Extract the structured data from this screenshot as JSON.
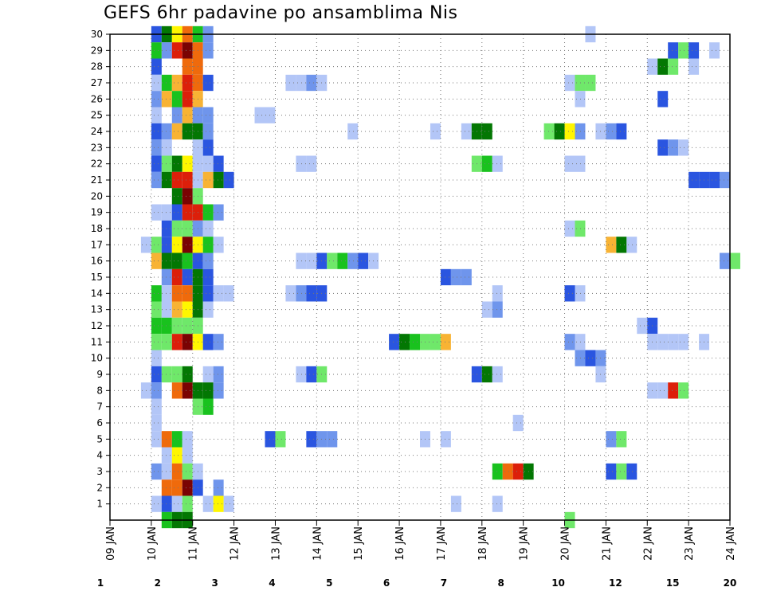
{
  "chart_data": {
    "type": "heatmap",
    "title": "GEFS 6hr padavine po ansamblima Nis",
    "xlabel": "",
    "ylabel": "",
    "x_tick_labels": [
      "09 JAN",
      "10 JAN",
      "11 JAN",
      "12 JAN",
      "13 JAN",
      "14 JAN",
      "15 JAN",
      "16 JAN",
      "17 JAN",
      "18 JAN",
      "19 JAN",
      "20 JAN",
      "21 JAN",
      "22 JAN",
      "23 JAN",
      "24 JAN"
    ],
    "y_tick_labels": [
      "1",
      "2",
      "3",
      "4",
      "5",
      "6",
      "7",
      "8",
      "9",
      "10",
      "11",
      "12",
      "13",
      "14",
      "15",
      "16",
      "17",
      "18",
      "19",
      "20",
      "21",
      "22",
      "23",
      "24",
      "25",
      "26",
      "27",
      "28",
      "29",
      "30"
    ],
    "xlim_days": [
      0,
      15
    ],
    "ylim": [
      0,
      30
    ],
    "grid": true,
    "colorbar": {
      "labels": [
        "1",
        "2",
        "3",
        "4",
        "5",
        "6",
        "7",
        "8",
        "10",
        "12",
        "15",
        "20"
      ],
      "colors": [
        "#b3c6f7",
        "#6f95ec",
        "#2a55e0",
        "#6fe86a",
        "#19c21e",
        "#037703",
        "#fff600",
        "#f8b334",
        "#ef6a0c",
        "#dc1f0a",
        "#7a0303"
      ]
    },
    "cell_width_days": 0.25,
    "cells": [
      [
        30,
        1,
        2
      ],
      [
        30,
        1.25,
        5
      ],
      [
        30,
        1.5,
        6
      ],
      [
        30,
        1.75,
        8
      ],
      [
        30,
        2,
        4
      ],
      [
        30,
        2.25,
        1
      ],
      [
        30,
        11.5,
        0
      ],
      [
        29,
        1,
        4
      ],
      [
        29,
        1.25,
        1
      ],
      [
        29,
        1.5,
        9
      ],
      [
        29,
        1.75,
        10
      ],
      [
        29,
        2,
        8
      ],
      [
        29,
        2.25,
        1
      ],
      [
        29,
        13.5,
        2
      ],
      [
        29,
        13.75,
        3
      ],
      [
        29,
        14,
        2
      ],
      [
        29,
        14.5,
        0
      ],
      [
        28,
        1,
        2
      ],
      [
        28,
        1.75,
        8
      ],
      [
        28,
        2,
        8
      ],
      [
        28,
        13,
        0
      ],
      [
        28,
        13.25,
        5
      ],
      [
        28,
        13.5,
        3
      ],
      [
        28,
        14,
        0
      ],
      [
        27,
        1,
        0
      ],
      [
        27,
        1.25,
        4
      ],
      [
        27,
        1.5,
        7
      ],
      [
        27,
        1.75,
        9
      ],
      [
        27,
        2,
        8
      ],
      [
        27,
        2.25,
        2
      ],
      [
        27,
        4.25,
        0
      ],
      [
        27,
        4.5,
        0
      ],
      [
        27,
        4.75,
        1
      ],
      [
        27,
        5,
        0
      ],
      [
        27,
        11,
        0
      ],
      [
        27,
        11.25,
        3
      ],
      [
        27,
        11.5,
        3
      ],
      [
        26,
        1,
        1
      ],
      [
        26,
        1.25,
        7
      ],
      [
        26,
        1.5,
        4
      ],
      [
        26,
        1.75,
        9
      ],
      [
        26,
        2,
        7
      ],
      [
        26,
        11.25,
        0
      ],
      [
        26,
        13.25,
        2
      ],
      [
        25,
        1,
        0
      ],
      [
        25,
        1.5,
        1
      ],
      [
        25,
        1.75,
        7
      ],
      [
        25,
        2,
        1
      ],
      [
        25,
        2.25,
        1
      ],
      [
        25,
        3.5,
        0
      ],
      [
        25,
        3.75,
        0
      ],
      [
        24,
        1,
        2
      ],
      [
        24,
        1.25,
        1
      ],
      [
        24,
        1.5,
        7
      ],
      [
        24,
        1.75,
        5
      ],
      [
        24,
        2,
        5
      ],
      [
        24,
        2.25,
        1
      ],
      [
        24,
        5.75,
        0
      ],
      [
        24,
        7.75,
        0
      ],
      [
        24,
        8.5,
        0
      ],
      [
        24,
        8.75,
        5
      ],
      [
        24,
        9,
        5
      ],
      [
        24,
        10.5,
        3
      ],
      [
        24,
        10.75,
        5
      ],
      [
        24,
        11,
        6
      ],
      [
        24,
        11.25,
        1
      ],
      [
        24,
        11.75,
        0
      ],
      [
        24,
        12,
        1
      ],
      [
        24,
        12.25,
        2
      ],
      [
        23,
        1,
        1
      ],
      [
        23,
        1.25,
        0
      ],
      [
        23,
        2,
        0
      ],
      [
        23,
        2.25,
        2
      ],
      [
        23,
        13.25,
        2
      ],
      [
        23,
        13.5,
        1
      ],
      [
        23,
        13.75,
        0
      ],
      [
        22,
        1,
        2
      ],
      [
        22,
        1.25,
        3
      ],
      [
        22,
        1.5,
        5
      ],
      [
        22,
        1.75,
        6
      ],
      [
        22,
        2,
        0
      ],
      [
        22,
        2.25,
        0
      ],
      [
        22,
        2.5,
        2
      ],
      [
        22,
        4.5,
        0
      ],
      [
        22,
        4.75,
        0
      ],
      [
        22,
        8.75,
        3
      ],
      [
        22,
        9,
        4
      ],
      [
        22,
        9.25,
        0
      ],
      [
        22,
        11,
        0
      ],
      [
        22,
        11.25,
        0
      ],
      [
        21,
        1,
        1
      ],
      [
        21,
        1.25,
        5
      ],
      [
        21,
        1.5,
        9
      ],
      [
        21,
        1.75,
        9
      ],
      [
        21,
        2,
        0
      ],
      [
        21,
        2.25,
        7
      ],
      [
        21,
        2.5,
        5
      ],
      [
        21,
        2.75,
        2
      ],
      [
        21,
        14,
        2
      ],
      [
        21,
        14.25,
        2
      ],
      [
        21,
        14.5,
        2
      ],
      [
        21,
        14.75,
        1
      ],
      [
        20,
        1.5,
        5
      ],
      [
        20,
        1.75,
        10
      ],
      [
        20,
        2,
        3
      ],
      [
        19,
        1,
        0
      ],
      [
        19,
        1.25,
        0
      ],
      [
        19,
        1.5,
        2
      ],
      [
        19,
        1.75,
        9
      ],
      [
        19,
        2,
        9
      ],
      [
        19,
        2.25,
        4
      ],
      [
        19,
        2.5,
        1
      ],
      [
        18,
        1.25,
        2
      ],
      [
        18,
        1.5,
        3
      ],
      [
        18,
        1.75,
        3
      ],
      [
        18,
        2,
        1
      ],
      [
        18,
        2.25,
        0
      ],
      [
        18,
        11,
        0
      ],
      [
        18,
        11.25,
        3
      ],
      [
        17,
        0.75,
        0
      ],
      [
        17,
        1,
        3
      ],
      [
        17,
        1.25,
        2
      ],
      [
        17,
        1.5,
        6
      ],
      [
        17,
        1.75,
        10
      ],
      [
        17,
        2,
        6
      ],
      [
        17,
        2.25,
        4
      ],
      [
        17,
        2.5,
        0
      ],
      [
        17,
        12,
        7
      ],
      [
        17,
        12.25,
        5
      ],
      [
        17,
        12.5,
        0
      ],
      [
        16,
        1,
        7
      ],
      [
        16,
        1.25,
        5
      ],
      [
        16,
        1.5,
        5
      ],
      [
        16,
        1.75,
        4
      ],
      [
        16,
        2,
        2
      ],
      [
        16,
        2.25,
        1
      ],
      [
        16,
        4.5,
        0
      ],
      [
        16,
        4.75,
        0
      ],
      [
        16,
        5,
        2
      ],
      [
        16,
        5.25,
        3
      ],
      [
        16,
        5.5,
        4
      ],
      [
        16,
        5.75,
        1
      ],
      [
        16,
        6,
        2
      ],
      [
        16,
        6.25,
        0
      ],
      [
        16,
        14.75,
        1
      ],
      [
        16,
        15,
        3
      ],
      [
        15,
        1.25,
        1
      ],
      [
        15,
        1.5,
        9
      ],
      [
        15,
        1.75,
        2
      ],
      [
        15,
        2,
        5
      ],
      [
        15,
        2.25,
        2
      ],
      [
        15,
        8,
        2
      ],
      [
        15,
        8.25,
        1
      ],
      [
        15,
        8.5,
        1
      ],
      [
        14,
        1,
        4
      ],
      [
        14,
        1.25,
        0
      ],
      [
        14,
        1.5,
        8
      ],
      [
        14,
        1.75,
        8
      ],
      [
        14,
        2,
        5
      ],
      [
        14,
        2.25,
        2
      ],
      [
        14,
        2.5,
        0
      ],
      [
        14,
        2.75,
        0
      ],
      [
        14,
        4.25,
        0
      ],
      [
        14,
        4.5,
        1
      ],
      [
        14,
        4.75,
        2
      ],
      [
        14,
        5,
        2
      ],
      [
        14,
        9.25,
        0
      ],
      [
        14,
        11,
        2
      ],
      [
        14,
        11.25,
        0
      ],
      [
        13,
        1,
        3
      ],
      [
        13,
        1.25,
        0
      ],
      [
        13,
        1.5,
        7
      ],
      [
        13,
        1.75,
        6
      ],
      [
        13,
        2,
        5
      ],
      [
        13,
        2.25,
        0
      ],
      [
        13,
        9,
        0
      ],
      [
        13,
        9.25,
        1
      ],
      [
        12,
        1,
        4
      ],
      [
        12,
        1.25,
        4
      ],
      [
        12,
        1.5,
        3
      ],
      [
        12,
        1.75,
        3
      ],
      [
        12,
        2,
        3
      ],
      [
        12,
        12.75,
        0
      ],
      [
        12,
        13,
        2
      ],
      [
        11,
        1,
        3
      ],
      [
        11,
        1.25,
        3
      ],
      [
        11,
        1.5,
        9
      ],
      [
        11,
        1.75,
        10
      ],
      [
        11,
        2,
        6
      ],
      [
        11,
        2.25,
        2
      ],
      [
        11,
        2.5,
        1
      ],
      [
        11,
        6.75,
        2
      ],
      [
        11,
        7,
        5
      ],
      [
        11,
        7.25,
        4
      ],
      [
        11,
        7.5,
        3
      ],
      [
        11,
        7.75,
        3
      ],
      [
        11,
        8,
        7
      ],
      [
        11,
        11,
        1
      ],
      [
        11,
        11.25,
        0
      ],
      [
        11,
        13,
        0
      ],
      [
        11,
        13.25,
        0
      ],
      [
        11,
        13.5,
        0
      ],
      [
        11,
        13.75,
        0
      ],
      [
        11,
        14.25,
        0
      ],
      [
        10,
        1,
        0
      ],
      [
        10,
        11.25,
        1
      ],
      [
        10,
        11.5,
        2
      ],
      [
        10,
        11.75,
        1
      ],
      [
        9,
        1,
        2
      ],
      [
        9,
        1.25,
        3
      ],
      [
        9,
        1.5,
        3
      ],
      [
        9,
        1.75,
        5
      ],
      [
        9,
        2.25,
        0
      ],
      [
        9,
        2.5,
        1
      ],
      [
        9,
        4.5,
        0
      ],
      [
        9,
        4.75,
        2
      ],
      [
        9,
        5,
        3
      ],
      [
        9,
        8.75,
        2
      ],
      [
        9,
        9,
        5
      ],
      [
        9,
        9.25,
        0
      ],
      [
        9,
        11.75,
        0
      ],
      [
        8,
        0.75,
        0
      ],
      [
        8,
        1,
        1
      ],
      [
        8,
        1.5,
        8
      ],
      [
        8,
        1.75,
        10
      ],
      [
        8,
        2,
        5
      ],
      [
        8,
        2.25,
        5
      ],
      [
        8,
        2.5,
        1
      ],
      [
        8,
        13,
        0
      ],
      [
        8,
        13.25,
        0
      ],
      [
        8,
        13.5,
        9
      ],
      [
        8,
        13.75,
        3
      ],
      [
        7,
        1,
        0
      ],
      [
        7,
        2,
        3
      ],
      [
        7,
        2.25,
        4
      ],
      [
        6,
        1,
        0
      ],
      [
        6,
        9.75,
        0
      ],
      [
        5,
        1,
        0
      ],
      [
        5,
        1.25,
        8
      ],
      [
        5,
        1.5,
        4
      ],
      [
        5,
        1.75,
        0
      ],
      [
        5,
        3.75,
        2
      ],
      [
        5,
        4,
        3
      ],
      [
        5,
        4.75,
        2
      ],
      [
        5,
        5,
        1
      ],
      [
        5,
        5.25,
        1
      ],
      [
        5,
        7.5,
        0
      ],
      [
        5,
        8,
        0
      ],
      [
        5,
        12,
        1
      ],
      [
        5,
        12.25,
        3
      ],
      [
        4,
        1.25,
        0
      ],
      [
        4,
        1.5,
        6
      ],
      [
        4,
        1.75,
        0
      ],
      [
        3,
        1,
        1
      ],
      [
        3,
        1.25,
        0
      ],
      [
        3,
        1.5,
        8
      ],
      [
        3,
        1.75,
        3
      ],
      [
        3,
        2,
        0
      ],
      [
        3,
        9.25,
        4
      ],
      [
        3,
        9.5,
        8
      ],
      [
        3,
        9.75,
        9
      ],
      [
        3,
        10,
        5
      ],
      [
        3,
        12,
        2
      ],
      [
        3,
        12.25,
        3
      ],
      [
        3,
        12.5,
        2
      ],
      [
        2,
        1.25,
        8
      ],
      [
        2,
        1.5,
        8
      ],
      [
        2,
        1.75,
        10
      ],
      [
        2,
        2,
        2
      ],
      [
        2,
        2.5,
        1
      ],
      [
        1,
        1,
        0
      ],
      [
        1,
        1.25,
        2
      ],
      [
        1,
        1.5,
        0
      ],
      [
        1,
        1.75,
        3
      ],
      [
        1,
        2.25,
        0
      ],
      [
        1,
        2.5,
        6
      ],
      [
        1,
        2.75,
        0
      ],
      [
        1,
        8.25,
        0
      ],
      [
        1,
        9.25,
        0
      ],
      [
        0,
        1.25,
        4
      ],
      [
        0,
        1.5,
        5
      ],
      [
        0,
        1.75,
        5
      ],
      [
        0,
        11,
        3
      ]
    ]
  }
}
